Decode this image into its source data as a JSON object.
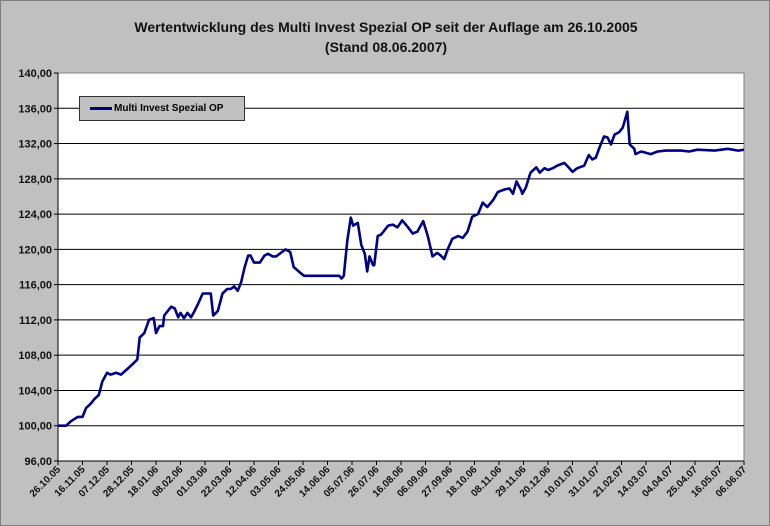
{
  "chart_data": {
    "type": "line",
    "title": "Wertentwicklung des Multi Invest Spezial OP seit der Auflage am 26.10.2005",
    "subtitle": "(Stand 08.06.2007)",
    "xlabel": "",
    "ylabel": "",
    "ylim": [
      96,
      140
    ],
    "yticks": [
      "96,00",
      "100,00",
      "104,00",
      "108,00",
      "112,00",
      "116,00",
      "120,00",
      "124,00",
      "128,00",
      "132,00",
      "136,00",
      "140,00"
    ],
    "x_unit": "days since 26.10.05",
    "xlim": [
      0,
      588
    ],
    "xticks": [
      "26.10.05",
      "16.11.05",
      "07.12.05",
      "28.12.05",
      "18.01.06",
      "08.02.06",
      "01.03.06",
      "22.03.06",
      "12.04.06",
      "03.05.06",
      "24.05.06",
      "14.06.06",
      "05.07.06",
      "26.07.06",
      "16.08.06",
      "06.09.06",
      "27.09.06",
      "18.10.06",
      "08.11.06",
      "29.11.06",
      "20.12.06",
      "10.01.07",
      "31.01.07",
      "21.02.07",
      "14.03.07",
      "04.04.07",
      "25.04.07",
      "16.05.07",
      "06.06.07"
    ],
    "grid": true,
    "legend_position": "top-left",
    "series": [
      {
        "name": "Multi Invest Spezial OP",
        "color": "#000080",
        "x": [
          0,
          7,
          11,
          17,
          21,
          24,
          28,
          31,
          35,
          38,
          42,
          45,
          50,
          54,
          60,
          64,
          68,
          70,
          74,
          78,
          82,
          84,
          87,
          90,
          91,
          97,
          100,
          103,
          105,
          108,
          111,
          114,
          117,
          120,
          124,
          130,
          131,
          133,
          137,
          141,
          145,
          148,
          151,
          154,
          157,
          160,
          163,
          165,
          168,
          173,
          177,
          180,
          184,
          187,
          191,
          195,
          199,
          202,
          208,
          211,
          220,
          237,
          241,
          243,
          245,
          248,
          251,
          253,
          257,
          260,
          263,
          265,
          267,
          270,
          271,
          274,
          277,
          283,
          287,
          291,
          295,
          300,
          304,
          308,
          313,
          317,
          321,
          325,
          328,
          331,
          334,
          338,
          343,
          347,
          351,
          355,
          360,
          364,
          368,
          373,
          377,
          383,
          387,
          390,
          393,
          397,
          398,
          401,
          405,
          410,
          413,
          417,
          420,
          424,
          428,
          434,
          437,
          441,
          445,
          451,
          455,
          458,
          461,
          464,
          468,
          471,
          474,
          477,
          481,
          484,
          488,
          490,
          494,
          495,
          500,
          508,
          514,
          521,
          534,
          541,
          548,
          563,
          574,
          583,
          588
        ],
        "y": [
          100,
          100,
          100.5,
          101,
          101,
          102,
          102.5,
          103,
          103.5,
          105,
          106,
          105.8,
          106,
          105.8,
          106.5,
          107,
          107.5,
          110,
          110.5,
          112,
          112.2,
          110.5,
          111.3,
          111.3,
          112.5,
          113.5,
          113.3,
          112.3,
          112.8,
          112.2,
          112.8,
          112.3,
          113,
          113.8,
          115,
          115,
          115,
          112.5,
          113,
          115,
          115.5,
          115.5,
          115.8,
          115.3,
          116.3,
          118,
          119.3,
          119.3,
          118.5,
          118.5,
          119.3,
          119.5,
          119.2,
          119.2,
          119.6,
          120,
          119.7,
          118,
          117.3,
          117,
          117,
          117,
          117,
          116.7,
          117,
          121,
          123.6,
          122.7,
          123,
          120.5,
          119.5,
          117.5,
          119.2,
          118.2,
          118.2,
          121.5,
          121.7,
          122.7,
          122.8,
          122.5,
          123.3,
          122.5,
          121.8,
          122,
          123.2,
          121.5,
          119.2,
          119.6,
          119.3,
          118.9,
          120,
          121.2,
          121.5,
          121.3,
          122,
          123.7,
          124,
          125.3,
          124.8,
          125.6,
          126.5,
          126.8,
          126.9,
          126.3,
          127.7,
          126.7,
          126.3,
          127,
          128.7,
          129.3,
          128.7,
          129.2,
          129,
          129.2,
          129.5,
          129.8,
          129.4,
          128.8,
          129.2,
          129.5,
          130.7,
          130.2,
          130.4,
          131.5,
          132.8,
          132.7,
          131.9,
          133,
          133.3,
          133.8,
          135.6,
          131.9,
          131.4,
          130.8,
          131.1,
          130.8,
          131.1,
          131.2,
          131.2,
          131.1,
          131.3,
          131.2,
          131.4,
          131.2,
          131.3
        ]
      }
    ]
  }
}
